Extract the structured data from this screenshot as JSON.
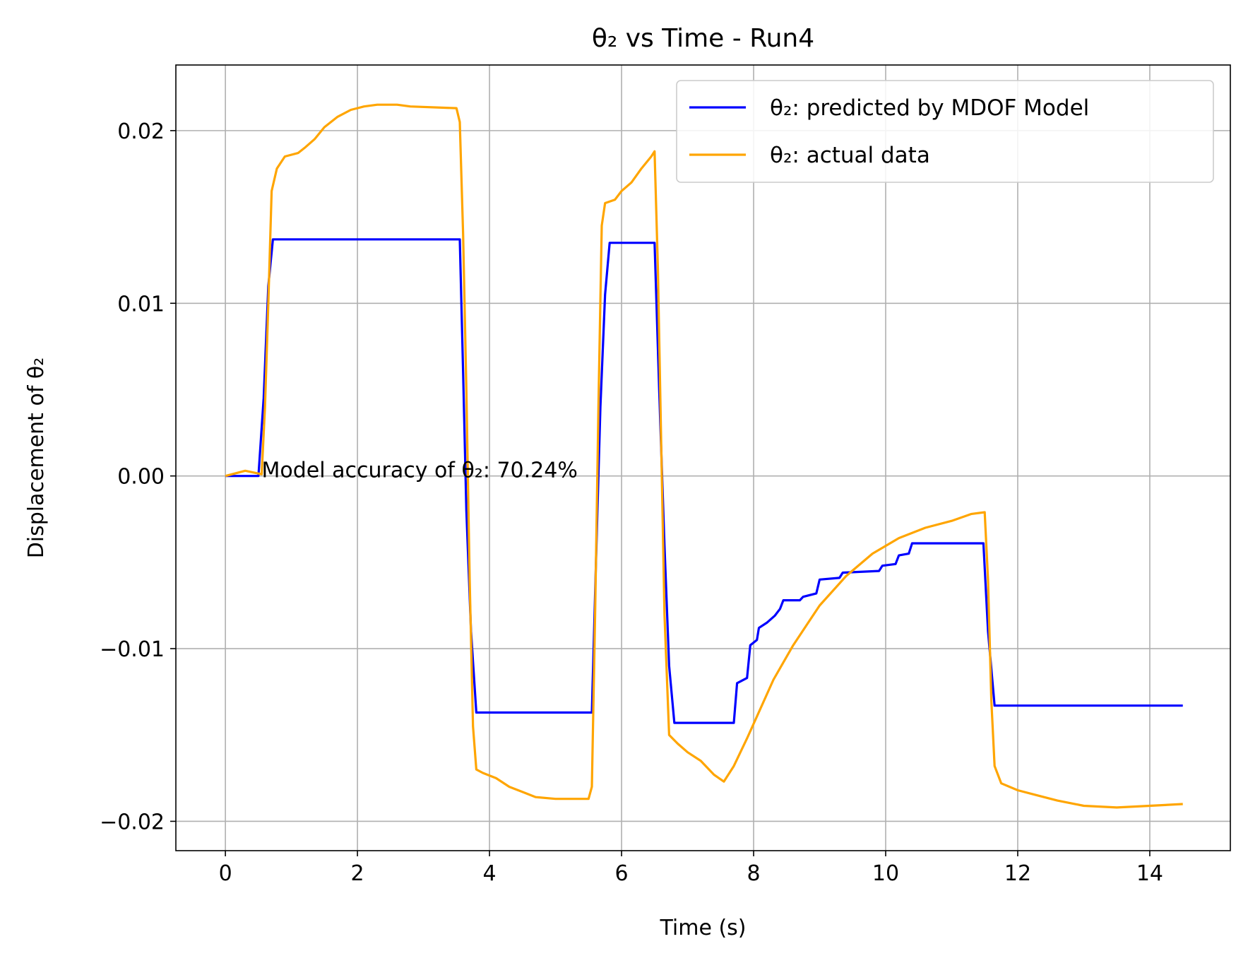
{
  "chart_data": {
    "type": "line",
    "title": "θ₂ vs Time - Run4",
    "xlabel": "Time (s)",
    "ylabel": "Displacement of θ₂",
    "xlim": [
      -0.75,
      15.22
    ],
    "ylim": [
      -0.0217,
      0.0238
    ],
    "x_ticks": [
      0,
      2,
      4,
      6,
      8,
      10,
      12,
      14
    ],
    "x_tick_labels": [
      "0",
      "2",
      "4",
      "6",
      "8",
      "10",
      "12",
      "14"
    ],
    "y_ticks": [
      0.02,
      0.01,
      0.0,
      -0.01,
      -0.02
    ],
    "y_tick_labels": [
      "0.02",
      "0.01",
      "0.00",
      "−0.01",
      "−0.02"
    ],
    "grid": true,
    "legend_position": "top-right",
    "annotation": {
      "text": "Model accuracy of θ₂: 70.24%",
      "x": 0.55,
      "y": 0.0
    },
    "series": [
      {
        "name": "θ₂: predicted by MDOF Model",
        "color": "#0000ff",
        "points": [
          [
            0,
            0
          ],
          [
            0.5,
            0
          ],
          [
            0.58,
            0.0045
          ],
          [
            0.65,
            0.011
          ],
          [
            0.72,
            0.0137
          ],
          [
            3.55,
            0.0137
          ],
          [
            3.6,
            0.006
          ],
          [
            3.65,
            -0.002
          ],
          [
            3.72,
            -0.009
          ],
          [
            3.8,
            -0.0137
          ],
          [
            5.55,
            -0.0137
          ],
          [
            5.62,
            -0.004
          ],
          [
            5.68,
            0.004
          ],
          [
            5.75,
            0.0105
          ],
          [
            5.82,
            0.0135
          ],
          [
            6.5,
            0.0135
          ],
          [
            6.57,
            0.005
          ],
          [
            6.65,
            -0.004
          ],
          [
            6.72,
            -0.011
          ],
          [
            6.8,
            -0.0143
          ],
          [
            7.7,
            -0.0143
          ],
          [
            7.75,
            -0.012
          ],
          [
            7.9,
            -0.0117
          ],
          [
            7.95,
            -0.0098
          ],
          [
            8.05,
            -0.0095
          ],
          [
            8.08,
            -0.0088
          ],
          [
            8.2,
            -0.0085
          ],
          [
            8.32,
            -0.0081
          ],
          [
            8.4,
            -0.0077
          ],
          [
            8.45,
            -0.0072
          ],
          [
            8.7,
            -0.0072
          ],
          [
            8.75,
            -0.007
          ],
          [
            8.95,
            -0.0068
          ],
          [
            9.0,
            -0.006
          ],
          [
            9.3,
            -0.0059
          ],
          [
            9.35,
            -0.0056
          ],
          [
            9.9,
            -0.0055
          ],
          [
            9.95,
            -0.0052
          ],
          [
            10.15,
            -0.0051
          ],
          [
            10.2,
            -0.0046
          ],
          [
            10.35,
            -0.0045
          ],
          [
            10.4,
            -0.0039
          ],
          [
            11.48,
            -0.0039
          ],
          [
            11.55,
            -0.009
          ],
          [
            11.65,
            -0.0133
          ],
          [
            14.5,
            -0.0133
          ]
        ]
      },
      {
        "name": "θ₂: actual data",
        "color": "#ffa500",
        "points": [
          [
            0,
            0
          ],
          [
            0.3,
            0.0003
          ],
          [
            0.55,
            0.0001
          ],
          [
            0.6,
            0.004
          ],
          [
            0.65,
            0.01
          ],
          [
            0.7,
            0.0165
          ],
          [
            0.78,
            0.0178
          ],
          [
            0.9,
            0.0185
          ],
          [
            1.1,
            0.0187
          ],
          [
            1.2,
            0.019
          ],
          [
            1.35,
            0.0195
          ],
          [
            1.5,
            0.0202
          ],
          [
            1.7,
            0.0208
          ],
          [
            1.9,
            0.0212
          ],
          [
            2.1,
            0.0214
          ],
          [
            2.3,
            0.0215
          ],
          [
            2.6,
            0.0215
          ],
          [
            2.8,
            0.0214
          ],
          [
            3.5,
            0.0213
          ],
          [
            3.55,
            0.0205
          ],
          [
            3.6,
            0.014
          ],
          [
            3.65,
            0.005
          ],
          [
            3.7,
            -0.006
          ],
          [
            3.75,
            -0.0145
          ],
          [
            3.8,
            -0.017
          ],
          [
            3.9,
            -0.0172
          ],
          [
            4.1,
            -0.0175
          ],
          [
            4.3,
            -0.018
          ],
          [
            4.5,
            -0.0183
          ],
          [
            4.7,
            -0.0186
          ],
          [
            5.0,
            -0.0187
          ],
          [
            5.5,
            -0.0187
          ],
          [
            5.55,
            -0.018
          ],
          [
            5.6,
            -0.008
          ],
          [
            5.65,
            0.004
          ],
          [
            5.7,
            0.0145
          ],
          [
            5.75,
            0.0158
          ],
          [
            5.9,
            0.016
          ],
          [
            6.0,
            0.0165
          ],
          [
            6.15,
            0.017
          ],
          [
            6.3,
            0.0178
          ],
          [
            6.45,
            0.0185
          ],
          [
            6.5,
            0.0188
          ],
          [
            6.55,
            0.012
          ],
          [
            6.6,
            0.002
          ],
          [
            6.65,
            -0.008
          ],
          [
            6.72,
            -0.015
          ],
          [
            6.85,
            -0.0155
          ],
          [
            7.0,
            -0.016
          ],
          [
            7.2,
            -0.0165
          ],
          [
            7.4,
            -0.0173
          ],
          [
            7.55,
            -0.0177
          ],
          [
            7.7,
            -0.0168
          ],
          [
            7.9,
            -0.0152
          ],
          [
            8.1,
            -0.0135
          ],
          [
            8.3,
            -0.0118
          ],
          [
            8.6,
            -0.0098
          ],
          [
            9.0,
            -0.0075
          ],
          [
            9.4,
            -0.0058
          ],
          [
            9.8,
            -0.0045
          ],
          [
            10.2,
            -0.0036
          ],
          [
            10.6,
            -0.003
          ],
          [
            11.0,
            -0.0026
          ],
          [
            11.3,
            -0.0022
          ],
          [
            11.5,
            -0.0021
          ],
          [
            11.55,
            -0.006
          ],
          [
            11.6,
            -0.013
          ],
          [
            11.65,
            -0.0168
          ],
          [
            11.75,
            -0.0178
          ],
          [
            12.0,
            -0.0182
          ],
          [
            12.3,
            -0.0185
          ],
          [
            12.6,
            -0.0188
          ],
          [
            13.0,
            -0.0191
          ],
          [
            13.5,
            -0.0192
          ],
          [
            14.0,
            -0.0191
          ],
          [
            14.5,
            -0.019
          ]
        ]
      }
    ]
  }
}
